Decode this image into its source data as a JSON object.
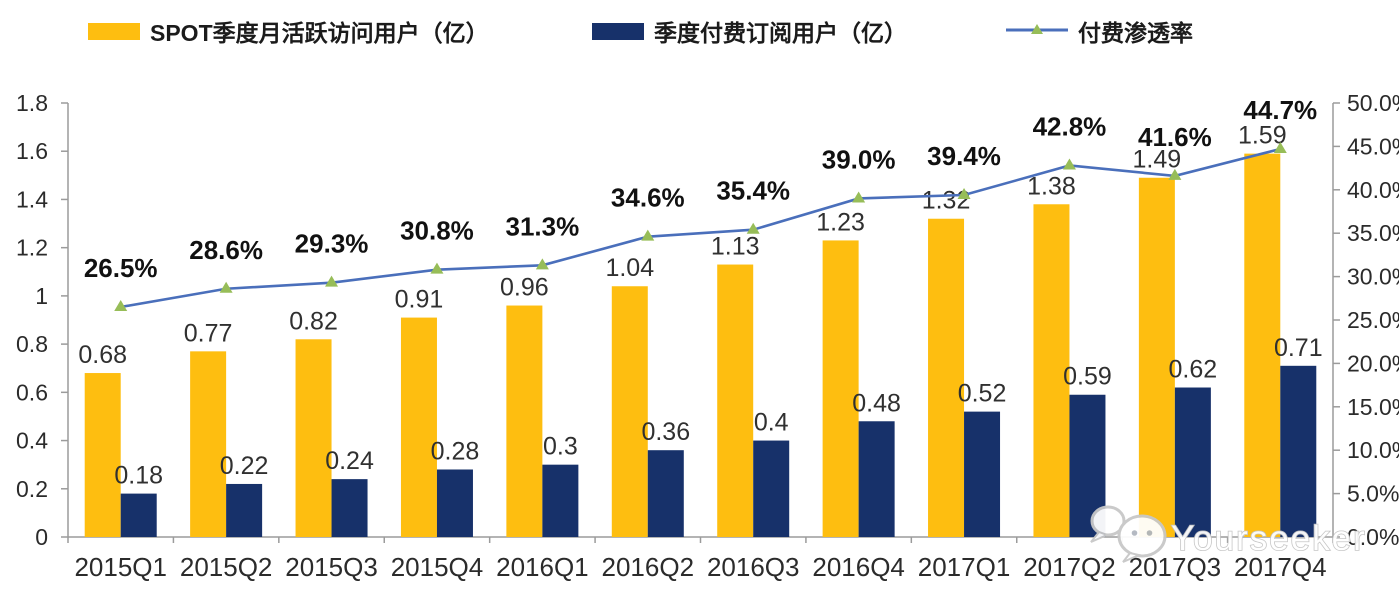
{
  "watermark": {
    "text": "Yourseeker",
    "icon": "wechat-icon"
  },
  "chart_data": {
    "type": "bar",
    "title": "",
    "legend_position": "top",
    "grid": false,
    "categories": [
      "2015Q1",
      "2015Q2",
      "2015Q3",
      "2015Q4",
      "2016Q1",
      "2016Q2",
      "2016Q3",
      "2016Q4",
      "2017Q1",
      "2017Q2",
      "2017Q3",
      "2017Q4"
    ],
    "series": [
      {
        "name": "SPOT季度月活跃访问用户（亿）",
        "type": "bar",
        "axis": "left",
        "color": "#FEBE10",
        "values": [
          0.68,
          0.77,
          0.82,
          0.91,
          0.96,
          1.04,
          1.13,
          1.23,
          1.32,
          1.38,
          1.49,
          1.59
        ],
        "labels": [
          "0.68",
          "0.77",
          "0.82",
          "0.91",
          "0.96",
          "1.04",
          "1.13",
          "1.23",
          "1.32",
          "1.38",
          "1.49",
          "1.59"
        ]
      },
      {
        "name": "季度付费订阅用户（亿）",
        "type": "bar",
        "axis": "left",
        "color": "#17316A",
        "values": [
          0.18,
          0.22,
          0.24,
          0.28,
          0.3,
          0.36,
          0.4,
          0.48,
          0.52,
          0.59,
          0.62,
          0.71
        ],
        "labels": [
          "0.18",
          "0.22",
          "0.24",
          "0.28",
          "0.3",
          "0.36",
          "0.4",
          "0.48",
          "0.52",
          "0.59",
          "0.62",
          "0.71"
        ]
      },
      {
        "name": "付费渗透率",
        "type": "line",
        "axis": "right",
        "color": "#4A6FBB",
        "marker": "triangle-up",
        "marker_color": "#97BD58",
        "values": [
          26.5,
          28.6,
          29.3,
          30.8,
          31.3,
          34.6,
          35.4,
          39.0,
          39.4,
          42.8,
          41.6,
          44.7
        ],
        "labels": [
          "26.5%",
          "28.6%",
          "29.3%",
          "30.8%",
          "31.3%",
          "34.6%",
          "35.4%",
          "39.0%",
          "39.4%",
          "42.8%",
          "41.6%",
          "44.7%"
        ]
      }
    ],
    "left_axis": {
      "min": 0,
      "max": 1.8,
      "step": 0.2,
      "tick_labels": [
        "0",
        "0.2",
        "0.4",
        "0.6",
        "0.8",
        "1",
        "1.2",
        "1.4",
        "1.6",
        "1.8"
      ]
    },
    "right_axis": {
      "min": 0,
      "max": 50,
      "step": 5,
      "tick_labels": [
        "0.0%",
        "5.0%",
        "10.0%",
        "15.0%",
        "20.0%",
        "25.0%",
        "30.0%",
        "35.0%",
        "40.0%",
        "45.0%",
        "50.0%"
      ]
    },
    "style": {
      "axis_color": "#9b9b9b",
      "label_color": "#2b2b2b",
      "pct_label_color": "#111111"
    }
  }
}
